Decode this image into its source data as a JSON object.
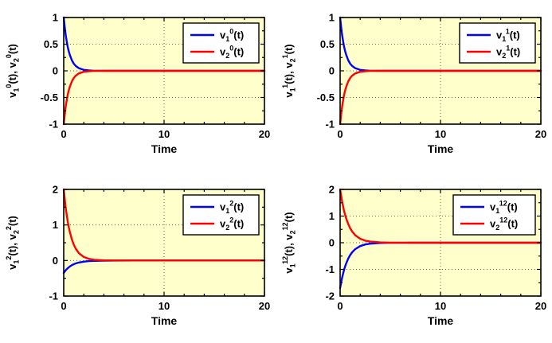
{
  "style": {
    "figure_background": "#ffffff",
    "plot_background": "#ffffcc",
    "axis_color": "#000000",
    "grid_color": "#666633",
    "legend_background": "#ffffff",
    "curve_blue": "#0000ff",
    "curve_red": "#ff0000"
  },
  "chart_data": [
    {
      "type": "line",
      "title": "",
      "xlabel": "Time",
      "ylabel": "v_1^0(t), v_2^0(t)",
      "xlim": [
        0,
        20
      ],
      "ylim": [
        -1,
        1
      ],
      "xticks": [
        0,
        10,
        20
      ],
      "yticks": [
        -1,
        -0.5,
        0,
        0.5,
        1
      ],
      "x_minor_step": 2,
      "y_minor_step": 0.25,
      "grid": true,
      "legend_position": "upper-right",
      "x": [
        0,
        0.1,
        0.2,
        0.3,
        0.4,
        0.5,
        0.6,
        0.8,
        1,
        1.2,
        1.5,
        2,
        2.5,
        3,
        4,
        5,
        7,
        10,
        15,
        20
      ],
      "series": [
        {
          "name": "v_1^0(t)",
          "color": "#0000ff",
          "values": [
            1,
            0.819,
            0.67,
            0.549,
            0.449,
            0.368,
            0.301,
            0.202,
            0.135,
            0.091,
            0.05,
            0.018,
            0.007,
            0.002,
            0,
            0,
            0,
            0,
            0,
            0
          ]
        },
        {
          "name": "v_2^0(t)",
          "color": "#ff0000",
          "values": [
            -1,
            -0.819,
            -0.67,
            -0.549,
            -0.449,
            -0.368,
            -0.301,
            -0.202,
            -0.135,
            -0.091,
            -0.05,
            -0.018,
            -0.007,
            -0.002,
            0,
            0,
            0,
            0,
            0,
            0
          ]
        }
      ]
    },
    {
      "type": "line",
      "title": "",
      "xlabel": "Time",
      "ylabel": "v_1^1(t), v_2^1(t)",
      "xlim": [
        0,
        20
      ],
      "ylim": [
        -1,
        1
      ],
      "xticks": [
        0,
        10,
        20
      ],
      "yticks": [
        -1,
        -0.5,
        0,
        0.5,
        1
      ],
      "x_minor_step": 2,
      "y_minor_step": 0.25,
      "grid": true,
      "legend_position": "upper-right",
      "x": [
        0,
        0.1,
        0.2,
        0.3,
        0.4,
        0.5,
        0.6,
        0.8,
        1,
        1.2,
        1.5,
        2,
        2.5,
        3,
        4,
        5,
        7,
        10,
        15,
        20
      ],
      "series": [
        {
          "name": "v_1^1(t)",
          "color": "#0000ff",
          "values": [
            1,
            0.819,
            0.67,
            0.549,
            0.449,
            0.368,
            0.301,
            0.202,
            0.135,
            0.091,
            0.05,
            0.018,
            0.007,
            0.002,
            0,
            0,
            0,
            0,
            0,
            0
          ]
        },
        {
          "name": "v_2^1(t)",
          "color": "#ff0000",
          "values": [
            -1,
            -0.819,
            -0.67,
            -0.549,
            -0.449,
            -0.368,
            -0.301,
            -0.202,
            -0.135,
            -0.091,
            -0.05,
            -0.018,
            -0.007,
            -0.002,
            0,
            0,
            0,
            0,
            0,
            0
          ]
        }
      ]
    },
    {
      "type": "line",
      "title": "",
      "xlabel": "Time",
      "ylabel": "v_1^2(t), v_2^2(t)",
      "xlim": [
        0,
        20
      ],
      "ylim": [
        -1,
        2
      ],
      "xticks": [
        0,
        10,
        20
      ],
      "yticks": [
        -1,
        0,
        1,
        2
      ],
      "x_minor_step": 2,
      "y_minor_step": 0.5,
      "grid": true,
      "legend_position": "upper-right",
      "x": [
        0,
        0.1,
        0.2,
        0.3,
        0.4,
        0.5,
        0.6,
        0.8,
        1,
        1.2,
        1.5,
        2,
        2.5,
        3,
        4,
        5,
        7,
        10,
        15,
        20
      ],
      "series": [
        {
          "name": "v_1^2(t)",
          "color": "#0000ff",
          "values": [
            -0.35,
            -0.31,
            -0.275,
            -0.244,
            -0.217,
            -0.192,
            -0.17,
            -0.134,
            -0.105,
            -0.083,
            -0.058,
            -0.032,
            -0.017,
            -0.01,
            -0.003,
            -0.001,
            0,
            0,
            0,
            0
          ]
        },
        {
          "name": "v_2^2(t)",
          "color": "#ff0000",
          "values": [
            2,
            1.722,
            1.482,
            1.276,
            1.098,
            0.944,
            0.813,
            0.602,
            0.446,
            0.331,
            0.211,
            0.1,
            0.047,
            0.022,
            0.005,
            0.001,
            0,
            0,
            0,
            0
          ]
        }
      ]
    },
    {
      "type": "line",
      "title": "",
      "xlabel": "Time",
      "ylabel": "v_1^12(t), v_2^12(t)",
      "xlim": [
        0,
        20
      ],
      "ylim": [
        -2,
        2
      ],
      "xticks": [
        0,
        10,
        20
      ],
      "yticks": [
        -2,
        -1,
        0,
        1,
        2
      ],
      "x_minor_step": 2,
      "y_minor_step": 0.5,
      "grid": true,
      "legend_position": "upper-right",
      "x": [
        0,
        0.1,
        0.2,
        0.3,
        0.4,
        0.5,
        0.6,
        0.8,
        1,
        1.2,
        1.5,
        2,
        2.5,
        3,
        4,
        5,
        7,
        10,
        15,
        20
      ],
      "series": [
        {
          "name": "v_1^12(t)",
          "color": "#0000ff",
          "values": [
            -1.7,
            -1.493,
            -1.311,
            -1.151,
            -1.011,
            -0.888,
            -0.779,
            -0.601,
            -0.463,
            -0.357,
            -0.242,
            -0.126,
            -0.066,
            -0.035,
            -0.009,
            -0.003,
            0,
            0,
            0,
            0
          ]
        },
        {
          "name": "v_2^12(t)",
          "color": "#ff0000",
          "values": [
            2,
            1.757,
            1.542,
            1.354,
            1.189,
            1.044,
            0.917,
            0.707,
            0.545,
            0.42,
            0.285,
            0.149,
            0.078,
            0.041,
            0.011,
            0.003,
            0,
            0,
            0,
            0
          ]
        }
      ]
    }
  ]
}
